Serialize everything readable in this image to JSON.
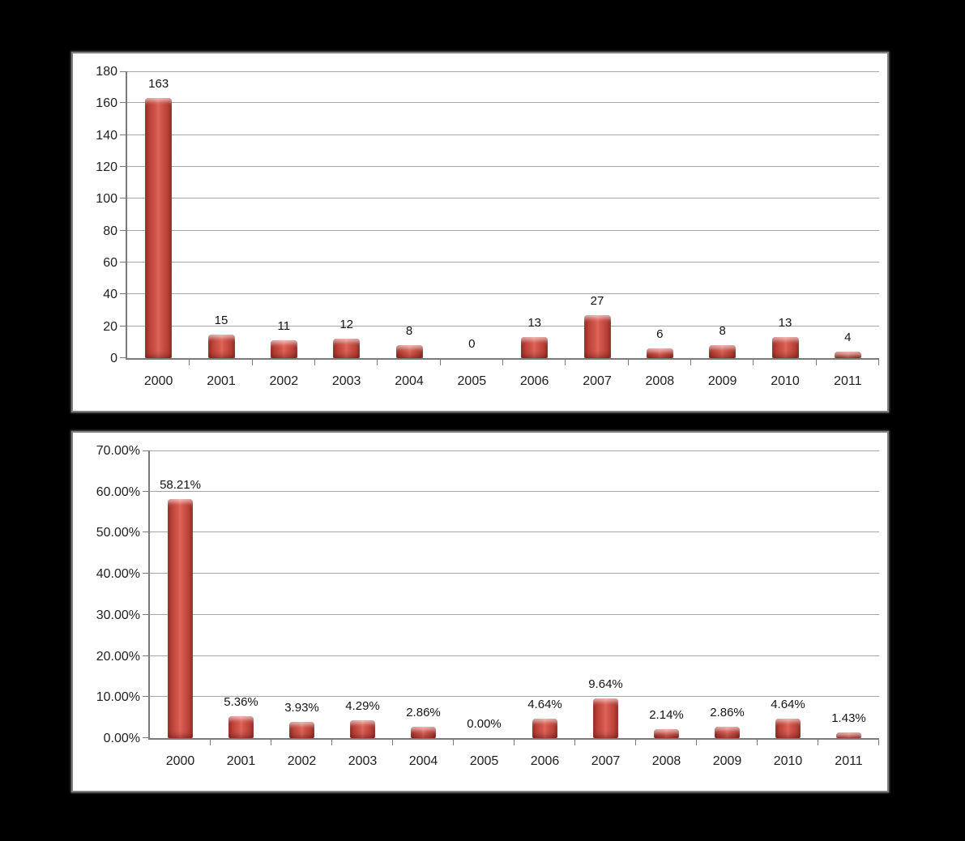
{
  "page": {
    "background_color": "#000000",
    "panel_background": "#ffffff",
    "panel_border_color": "#7f7f7f",
    "gridline_color": "#a6a6a6",
    "axis_color": "#7a7a7a",
    "bar_color_center": "#de665b",
    "bar_color_edge": "#8e2a23",
    "label_color": "#1f1f1f"
  },
  "chart_data": [
    {
      "type": "bar",
      "title": "",
      "xlabel": "",
      "ylabel": "",
      "legend": "none",
      "grid": true,
      "categories": [
        "2000",
        "2001",
        "2002",
        "2003",
        "2004",
        "2005",
        "2006",
        "2007",
        "2008",
        "2009",
        "2010",
        "2011"
      ],
      "values": [
        163,
        15,
        11,
        12,
        8,
        0,
        13,
        27,
        6,
        8,
        13,
        4
      ],
      "data_labels": [
        "163",
        "15",
        "11",
        "12",
        "8",
        "0",
        "13",
        "27",
        "6",
        "8",
        "13",
        "4"
      ],
      "ylim": [
        0,
        180
      ],
      "ytick_step": 20,
      "ytick_labels": [
        "0",
        "20",
        "40",
        "60",
        "80",
        "100",
        "120",
        "140",
        "160",
        "180"
      ]
    },
    {
      "type": "bar",
      "title": "",
      "xlabel": "",
      "ylabel": "",
      "legend": "none",
      "grid": true,
      "categories": [
        "2000",
        "2001",
        "2002",
        "2003",
        "2004",
        "2005",
        "2006",
        "2007",
        "2008",
        "2009",
        "2010",
        "2011"
      ],
      "values": [
        58.21,
        5.36,
        3.93,
        4.29,
        2.86,
        0,
        4.64,
        9.64,
        2.14,
        2.86,
        4.64,
        1.43
      ],
      "data_labels": [
        "58.21%",
        "5.36%",
        "3.93%",
        "4.29%",
        "2.86%",
        "0.00%",
        "4.64%",
        "9.64%",
        "2.14%",
        "2.86%",
        "4.64%",
        "1.43%"
      ],
      "ylim": [
        0,
        70
      ],
      "ytick_step": 10,
      "ytick_labels": [
        "0.00%",
        "10.00%",
        "20.00%",
        "30.00%",
        "40.00%",
        "50.00%",
        "60.00%",
        "70.00%"
      ]
    }
  ]
}
